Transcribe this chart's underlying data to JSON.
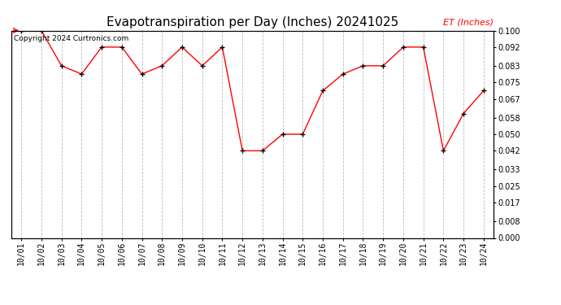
{
  "title": "Evapotranspiration per Day (Inches) 20241025",
  "copyright_text": "Copyright 2024 Curtronics.com",
  "legend_label": "ET (Inches)",
  "x_labels": [
    "10/01",
    "10/02",
    "10/03",
    "10/04",
    "10/05",
    "10/06",
    "10/07",
    "10/08",
    "10/09",
    "10/10",
    "10/11",
    "10/12",
    "10/13",
    "10/14",
    "10/15",
    "10/16",
    "10/17",
    "10/18",
    "10/19",
    "10/20",
    "10/21",
    "10/22",
    "10/23",
    "10/24"
  ],
  "y_values": [
    0.1,
    0.1,
    0.083,
    0.079,
    0.092,
    0.092,
    0.079,
    0.083,
    0.092,
    0.083,
    0.092,
    0.042,
    0.042,
    0.05,
    0.05,
    0.071,
    0.079,
    0.083,
    0.083,
    0.092,
    0.092,
    0.042,
    0.06,
    0.071
  ],
  "line_color": "#ff0000",
  "marker": "+",
  "marker_size": 5,
  "marker_color": "#000000",
  "y_ticks": [
    0.0,
    0.008,
    0.017,
    0.025,
    0.033,
    0.042,
    0.05,
    0.058,
    0.067,
    0.075,
    0.083,
    0.092,
    0.1
  ],
  "y_min": 0.0,
  "y_max": 0.1,
  "background_color": "#ffffff",
  "grid_color": "#bbbbbb",
  "title_fontsize": 11,
  "tick_fontsize": 7,
  "legend_color": "#ff0000",
  "copyright_color": "#000000",
  "copyright_fontsize": 6.5,
  "legend_fontsize": 8
}
